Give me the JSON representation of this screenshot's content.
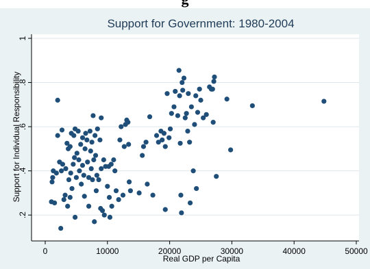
{
  "header_fragment": "g",
  "chart_data": {
    "type": "scatter",
    "title": "Support for Government: 1980-2004",
    "xlabel": "Real GDP per Capita",
    "ylabel": "Support for Individual Responsibility",
    "xlim": [
      0,
      50000
    ],
    "ylim": [
      0.12,
      1.0
    ],
    "xticks": [
      0,
      10000,
      20000,
      30000,
      40000,
      50000
    ],
    "yticks": [
      0.2,
      0.4,
      0.6,
      0.8,
      1
    ],
    "ytick_labels": [
      ".2",
      ".4",
      ".6",
      ".8",
      "1"
    ],
    "grid": "horizontal",
    "marker_color": "#1f4e79",
    "background_color": "#eaf2f3",
    "plot_background": "#ffffff",
    "points": [
      [
        1000,
        0.26
      ],
      [
        1100,
        0.35
      ],
      [
        1200,
        0.37
      ],
      [
        1300,
        0.4
      ],
      [
        1500,
        0.255
      ],
      [
        1800,
        0.39
      ],
      [
        2000,
        0.56
      ],
      [
        2000,
        0.72
      ],
      [
        2300,
        0.44
      ],
      [
        2500,
        0.14
      ],
      [
        2600,
        0.4
      ],
      [
        2700,
        0.585
      ],
      [
        2800,
        0.43
      ],
      [
        3000,
        0.27
      ],
      [
        3200,
        0.29
      ],
      [
        3300,
        0.41
      ],
      [
        3500,
        0.525
      ],
      [
        3600,
        0.24
      ],
      [
        3700,
        0.5
      ],
      [
        3800,
        0.36
      ],
      [
        4000,
        0.51
      ],
      [
        4000,
        0.28
      ],
      [
        4100,
        0.39
      ],
      [
        4200,
        0.57
      ],
      [
        4300,
        0.32
      ],
      [
        4500,
        0.43
      ],
      [
        4600,
        0.56
      ],
      [
        4700,
        0.46
      ],
      [
        4800,
        0.59
      ],
      [
        4800,
        0.19
      ],
      [
        5000,
        0.37
      ],
      [
        5100,
        0.48
      ],
      [
        5300,
        0.58
      ],
      [
        5400,
        0.45
      ],
      [
        5500,
        0.4
      ],
      [
        5700,
        0.52
      ],
      [
        5800,
        0.34
      ],
      [
        6000,
        0.55
      ],
      [
        6000,
        0.425
      ],
      [
        6200,
        0.38
      ],
      [
        6300,
        0.285
      ],
      [
        6400,
        0.5
      ],
      [
        6500,
        0.57
      ],
      [
        6700,
        0.54
      ],
      [
        6800,
        0.44
      ],
      [
        7000,
        0.37
      ],
      [
        7000,
        0.24
      ],
      [
        7200,
        0.58
      ],
      [
        7300,
        0.49
      ],
      [
        7400,
        0.41
      ],
      [
        7500,
        0.53
      ],
      [
        7600,
        0.36
      ],
      [
        7700,
        0.65
      ],
      [
        7800,
        0.45
      ],
      [
        7900,
        0.17
      ],
      [
        8000,
        0.56
      ],
      [
        8100,
        0.47
      ],
      [
        8200,
        0.31
      ],
      [
        8300,
        0.38
      ],
      [
        8400,
        0.59
      ],
      [
        8600,
        0.36
      ],
      [
        8800,
        0.54
      ],
      [
        8900,
        0.23
      ],
      [
        9000,
        0.64
      ],
      [
        9000,
        0.41
      ],
      [
        9200,
        0.22
      ],
      [
        9400,
        0.45
      ],
      [
        9500,
        0.2
      ],
      [
        9700,
        0.42
      ],
      [
        10000,
        0.33
      ],
      [
        10200,
        0.42
      ],
      [
        10300,
        0.28
      ],
      [
        10400,
        0.19
      ],
      [
        10600,
        0.43
      ],
      [
        10700,
        0.24
      ],
      [
        11000,
        0.45
      ],
      [
        11200,
        0.4
      ],
      [
        11400,
        0.31
      ],
      [
        11800,
        0.27
      ],
      [
        12000,
        0.54
      ],
      [
        12200,
        0.6
      ],
      [
        12500,
        0.29
      ],
      [
        12700,
        0.51
      ],
      [
        12900,
        0.61
      ],
      [
        13100,
        0.63
      ],
      [
        13300,
        0.62
      ],
      [
        13400,
        0.52
      ],
      [
        13500,
        0.35
      ],
      [
        13700,
        0.31
      ],
      [
        15100,
        0.3
      ],
      [
        15600,
        0.47
      ],
      [
        15800,
        0.51
      ],
      [
        16200,
        0.53
      ],
      [
        16400,
        0.34
      ],
      [
        16800,
        0.645
      ],
      [
        17300,
        0.29
      ],
      [
        17900,
        0.56
      ],
      [
        18200,
        0.53
      ],
      [
        18600,
        0.58
      ],
      [
        18800,
        0.54
      ],
      [
        19100,
        0.57
      ],
      [
        19300,
        0.51
      ],
      [
        19300,
        0.225
      ],
      [
        19600,
        0.75
      ],
      [
        19900,
        0.55
      ],
      [
        20100,
        0.59
      ],
      [
        20300,
        0.66
      ],
      [
        20700,
        0.69
      ],
      [
        20900,
        0.76
      ],
      [
        21300,
        0.65
      ],
      [
        21500,
        0.855
      ],
      [
        21600,
        0.74
      ],
      [
        21700,
        0.525
      ],
      [
        21800,
        0.29
      ],
      [
        21900,
        0.21
      ],
      [
        22000,
        0.8
      ],
      [
        22100,
        0.765
      ],
      [
        22300,
        0.82
      ],
      [
        22500,
        0.64
      ],
      [
        22700,
        0.66
      ],
      [
        22900,
        0.58
      ],
      [
        23000,
        0.75
      ],
      [
        23200,
        0.53
      ],
      [
        23300,
        0.255
      ],
      [
        23500,
        0.69
      ],
      [
        23800,
        0.4
      ],
      [
        24000,
        0.61
      ],
      [
        24200,
        0.74
      ],
      [
        24300,
        0.32
      ],
      [
        24500,
        0.665
      ],
      [
        24800,
        0.77
      ],
      [
        25000,
        0.72
      ],
      [
        25400,
        0.64
      ],
      [
        25900,
        0.655
      ],
      [
        26400,
        0.78
      ],
      [
        26700,
        0.77
      ],
      [
        26900,
        0.77
      ],
      [
        27000,
        0.62
      ],
      [
        27100,
        0.805
      ],
      [
        27200,
        0.825
      ],
      [
        27500,
        0.375
      ],
      [
        29200,
        0.725
      ],
      [
        29800,
        0.495
      ],
      [
        33300,
        0.695
      ],
      [
        44800,
        0.715
      ]
    ]
  }
}
